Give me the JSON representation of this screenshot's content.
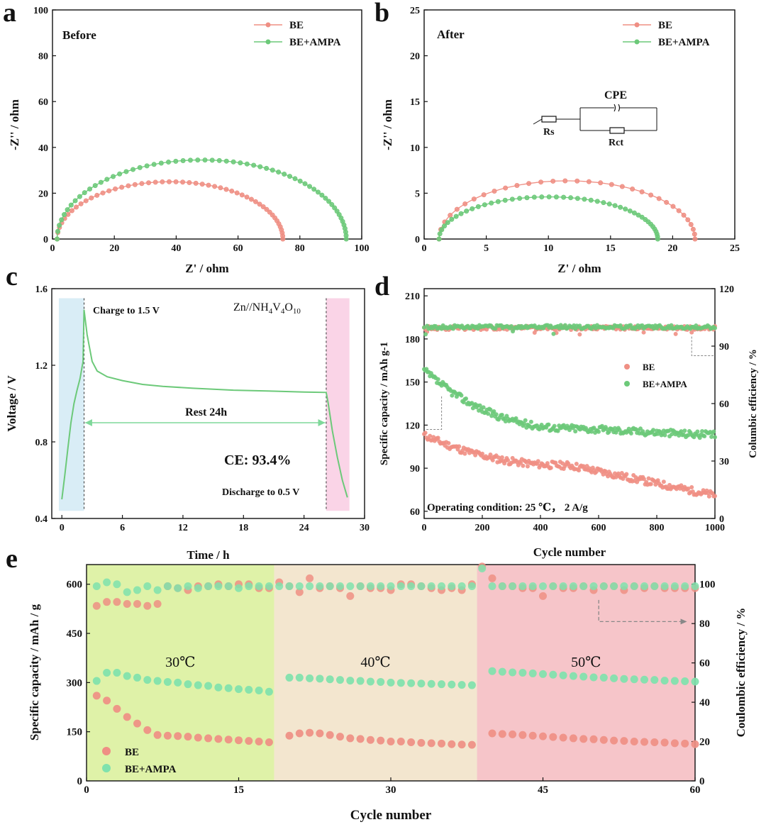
{
  "chart_data": [
    {
      "id": "a",
      "panel_label": "a",
      "type": "scatter",
      "annotation": "Before",
      "xlabel": "Z' / ohm",
      "ylabel": "-Z'' / ohm",
      "xlim": [
        0,
        100
      ],
      "ylim": [
        0,
        100
      ],
      "xticks": [
        0,
        20,
        40,
        60,
        80,
        100
      ],
      "yticks": [
        0,
        20,
        40,
        60,
        80,
        100
      ],
      "legend_pos": "top-right",
      "series": [
        {
          "name": "BE",
          "color": "#ef8f84",
          "start": 1.5,
          "end": 74.5,
          "height": 25,
          "n": 50
        },
        {
          "name": "BE+AMPA",
          "color": "#6cc979",
          "start": 1.5,
          "end": 95,
          "height": 34.5,
          "n": 60
        }
      ]
    },
    {
      "id": "b",
      "panel_label": "b",
      "type": "scatter",
      "annotation": "After",
      "xlabel": "Z' / ohm",
      "ylabel": "-Z'' / ohm",
      "xlim": [
        0,
        25
      ],
      "ylim": [
        0,
        25
      ],
      "xticks": [
        0,
        5,
        10,
        15,
        20,
        25
      ],
      "yticks": [
        0,
        5,
        10,
        15,
        20,
        25
      ],
      "legend_pos": "top-right",
      "circuit": {
        "cpe": "CPE",
        "rs": "Rs",
        "rct": "Rct"
      },
      "series": [
        {
          "name": "BE",
          "color": "#ef8f84",
          "start": 1.2,
          "end": 21.8,
          "height": 6.35,
          "n": 32
        },
        {
          "name": "BE+AMPA",
          "color": "#6cc979",
          "start": 1.2,
          "end": 18.8,
          "height": 4.6,
          "n": 45
        }
      ]
    },
    {
      "id": "c",
      "panel_label": "c",
      "type": "line",
      "xlabel": "Time / h",
      "ylabel": "Voltage / V",
      "xlim": [
        -1,
        30
      ],
      "ylim": [
        0.4,
        1.6
      ],
      "xticks": [
        0,
        6,
        12,
        18,
        24,
        30
      ],
      "yticks": [
        0.4,
        0.8,
        1.2,
        1.6
      ],
      "charge_label": "Charge to 1.5 V",
      "discharge_label": "Discharge to 0.5 V",
      "rest_label": "Rest 24h",
      "ce_label": "CE: 93.4%",
      "cell_label": {
        "base": "Zn//NH",
        "sub1": "4",
        "mid1": "V",
        "sub2": "4",
        "mid2": "O",
        "sub3": "10"
      },
      "charge_region": [
        -0.3,
        2.2
      ],
      "discharge_region": [
        26.2,
        28.5
      ],
      "line_color": "#6cc979",
      "curve": [
        [
          0,
          0.5
        ],
        [
          0.3,
          0.63
        ],
        [
          0.6,
          0.77
        ],
        [
          0.9,
          0.9
        ],
        [
          1.2,
          1.0
        ],
        [
          1.5,
          1.07
        ],
        [
          1.8,
          1.13
        ],
        [
          2.1,
          1.22
        ],
        [
          2.2,
          1.49
        ],
        [
          2.5,
          1.36
        ],
        [
          3,
          1.22
        ],
        [
          3.5,
          1.17
        ],
        [
          4.5,
          1.14
        ],
        [
          6,
          1.12
        ],
        [
          8,
          1.1
        ],
        [
          10,
          1.09
        ],
        [
          13,
          1.08
        ],
        [
          17,
          1.07
        ],
        [
          21,
          1.065
        ],
        [
          24,
          1.06
        ],
        [
          26.2,
          1.058
        ],
        [
          26.4,
          1.0
        ],
        [
          26.8,
          0.86
        ],
        [
          27.3,
          0.72
        ],
        [
          27.8,
          0.6
        ],
        [
          28.3,
          0.51
        ]
      ]
    },
    {
      "id": "d",
      "panel_label": "d",
      "type": "scatter",
      "xlabel": "Cycle number",
      "ylabel": "Specific capacity / mAh g-1",
      "y2label": "Columbic efficiency / %",
      "xlim": [
        0,
        1000
      ],
      "ylim": [
        55,
        215
      ],
      "y2lim": [
        0,
        120
      ],
      "xticks": [
        0,
        200,
        400,
        600,
        800,
        1000
      ],
      "yticks": [
        60,
        90,
        120,
        150,
        180,
        210
      ],
      "y2ticks": [
        0,
        30,
        60,
        90,
        120
      ],
      "legend_pos": "center-right",
      "annotation": "Operating condition: 25 ℃， 2 A/g",
      "series": [
        {
          "name": "BE",
          "color": "#ef8f84",
          "capacity_start": 113,
          "capacity_mid": 92,
          "capacity_end": 71,
          "ce": 99.5
        },
        {
          "name": "BE+AMPA",
          "color": "#6cc979",
          "capacity_start": 158,
          "capacity_mid": 118,
          "capacity_end": 113,
          "ce": 100
        }
      ]
    },
    {
      "id": "e",
      "panel_label": "e",
      "type": "scatter",
      "xlabel": "Cycle number",
      "ylabel": "Specific capacity / mAh / g",
      "y2label": "Coulombic efficiency / %",
      "xlim": [
        0,
        60
      ],
      "ylim": [
        0,
        660
      ],
      "y2lim": [
        0,
        110
      ],
      "xticks": [
        0,
        15,
        30,
        45,
        60
      ],
      "yticks": [
        0,
        150,
        300,
        450,
        600
      ],
      "y2ticks": [
        0,
        20,
        40,
        60,
        80,
        100
      ],
      "legend_pos": "bottom-left",
      "regions": [
        {
          "label": "30℃",
          "from": 0,
          "to": 18.5,
          "color": "#dff2a8"
        },
        {
          "label": "40℃",
          "from": 18.5,
          "to": 38.5,
          "color": "#f3e6cf"
        },
        {
          "label": "50℃",
          "from": 38.5,
          "to": 60,
          "color": "#f6c5c9"
        }
      ],
      "series": [
        {
          "name": "BE",
          "color": "#ef8f84",
          "capacity": [
            260,
            245,
            220,
            195,
            175,
            155,
            140,
            138,
            137,
            135,
            132,
            130,
            128,
            126,
            124,
            122,
            120,
            118,
            0,
            138,
            145,
            147,
            145,
            140,
            135,
            130,
            128,
            125,
            123,
            120,
            120,
            118,
            116,
            115,
            114,
            112,
            111,
            110,
            0,
            145,
            143,
            142,
            140,
            138,
            136,
            134,
            132,
            130,
            128,
            127,
            125,
            123,
            122,
            120,
            119,
            118,
            117,
            115,
            114,
            112
          ],
          "ce": [
            89,
            91,
            91,
            90,
            90,
            89,
            90,
            99,
            98,
            97,
            99,
            99,
            100,
            99,
            100,
            100,
            98,
            98,
            101,
            99,
            96,
            103,
            98,
            99,
            98,
            94,
            99,
            98,
            98,
            97,
            100,
            100,
            99,
            98,
            97,
            98,
            97,
            100,
            109,
            103,
            99,
            99,
            98,
            98,
            94,
            99,
            98,
            98,
            99,
            97,
            99,
            99,
            97,
            99,
            98,
            99,
            98,
            98,
            98,
            98
          ]
        },
        {
          "name": "BE+AMPA",
          "color": "#7fe2ad",
          "capacity": [
            305,
            330,
            330,
            320,
            315,
            308,
            305,
            302,
            300,
            295,
            292,
            290,
            285,
            283,
            280,
            278,
            276,
            272,
            0,
            315,
            315,
            313,
            312,
            310,
            308,
            306,
            305,
            303,
            302,
            300,
            299,
            298,
            297,
            296,
            295,
            294,
            293,
            292,
            0,
            335,
            333,
            331,
            330,
            328,
            326,
            324,
            322,
            320,
            318,
            316,
            315,
            313,
            311,
            310,
            309,
            308,
            306,
            305,
            304,
            303
          ],
          "ce": [
            99,
            101,
            100,
            96,
            97,
            99,
            97,
            99,
            98,
            99,
            98,
            99,
            99,
            99,
            98,
            99,
            99,
            99,
            99,
            99,
            99,
            99,
            99,
            99,
            99,
            99,
            99,
            99,
            99,
            99,
            99,
            99,
            99,
            99,
            99,
            99,
            99,
            99,
            108,
            99,
            99,
            99,
            99,
            99,
            99,
            99,
            99,
            99,
            99,
            99,
            99,
            99,
            99,
            99,
            99,
            99,
            99,
            99,
            99,
            99
          ]
        }
      ]
    }
  ]
}
